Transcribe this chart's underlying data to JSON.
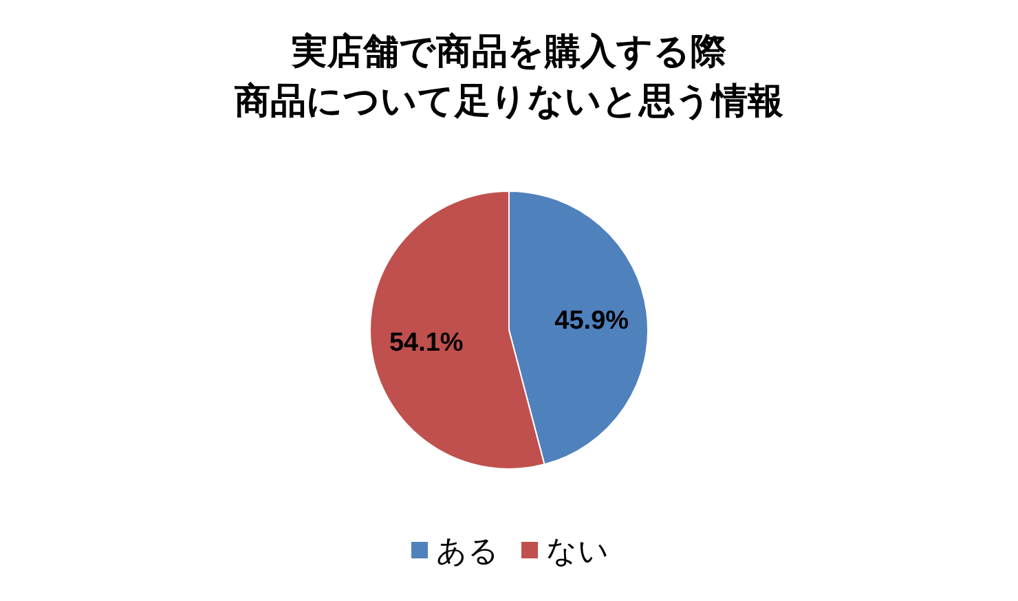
{
  "chart_data": {
    "type": "pie",
    "title": [
      "実店舗で商品を購入する際",
      "商品について足りないと思う情報"
    ],
    "categories": [
      "ある",
      "ない"
    ],
    "values": [
      45.9,
      54.1
    ],
    "value_labels": [
      "45.9%",
      "54.1%"
    ],
    "colors": [
      "#4f81bd",
      "#c0504d"
    ],
    "legend": "bottom"
  }
}
